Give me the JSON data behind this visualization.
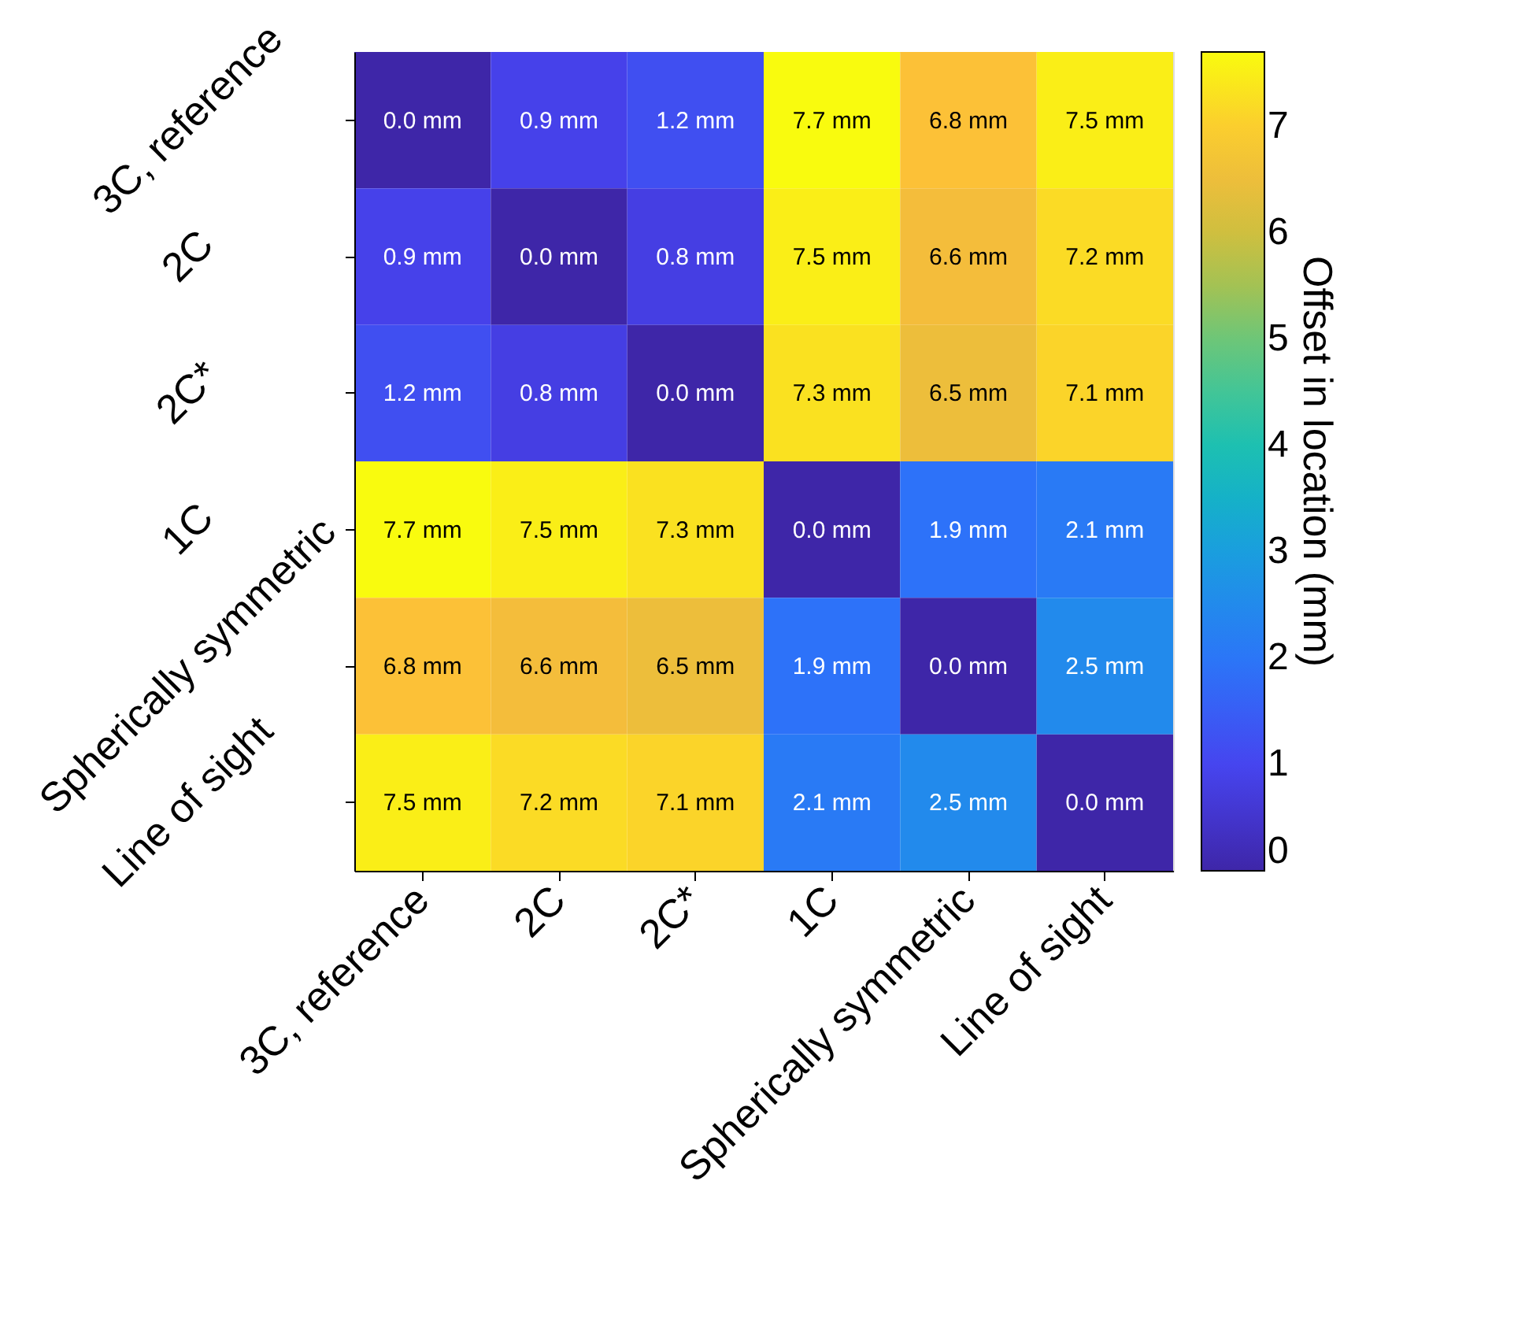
{
  "chart_data": {
    "type": "heatmap",
    "categories": [
      "3C, reference",
      "2C",
      "2C*",
      "1C",
      "Spherically symmetric",
      "Line of sight"
    ],
    "y_categories": [
      "3C, reference",
      "2C",
      "2C*",
      "1C",
      "Spherically symmetric",
      "Line of sight"
    ],
    "cells": [
      [
        0.0,
        0.9,
        1.2,
        7.7,
        6.8,
        7.5
      ],
      [
        0.9,
        0.0,
        0.8,
        7.5,
        6.6,
        7.2
      ],
      [
        1.2,
        0.8,
        0.0,
        7.3,
        6.5,
        7.1
      ],
      [
        7.7,
        7.5,
        7.3,
        0.0,
        1.9,
        2.1
      ],
      [
        6.8,
        6.6,
        6.5,
        1.9,
        0.0,
        2.5
      ],
      [
        7.5,
        7.2,
        7.1,
        2.1,
        2.5,
        0.0
      ]
    ],
    "cell_labels": [
      [
        "0.0 mm",
        "0.9 mm",
        "1.2 mm",
        "7.7 mm",
        "6.8 mm",
        "7.5 mm"
      ],
      [
        "0.9 mm",
        "0.0 mm",
        "0.8 mm",
        "7.5 mm",
        "6.6 mm",
        "7.2 mm"
      ],
      [
        "1.2 mm",
        "0.8 mm",
        "0.0 mm",
        "7.3 mm",
        "6.5 mm",
        "7.1 mm"
      ],
      [
        "7.7 mm",
        "7.5 mm",
        "7.3 mm",
        "0.0 mm",
        "1.9 mm",
        "2.1 mm"
      ],
      [
        "6.8 mm",
        "6.6 mm",
        "6.5 mm",
        "1.9 mm",
        "0.0 mm",
        "2.5 mm"
      ],
      [
        "7.5 mm",
        "7.2 mm",
        "7.1 mm",
        "2.1 mm",
        "2.5 mm",
        "0.0 mm"
      ]
    ],
    "clabel": "Offset in location (mm)",
    "clim": [
      0,
      7.7
    ],
    "cticks": [
      0,
      1,
      2,
      3,
      4,
      5,
      6,
      7
    ]
  }
}
